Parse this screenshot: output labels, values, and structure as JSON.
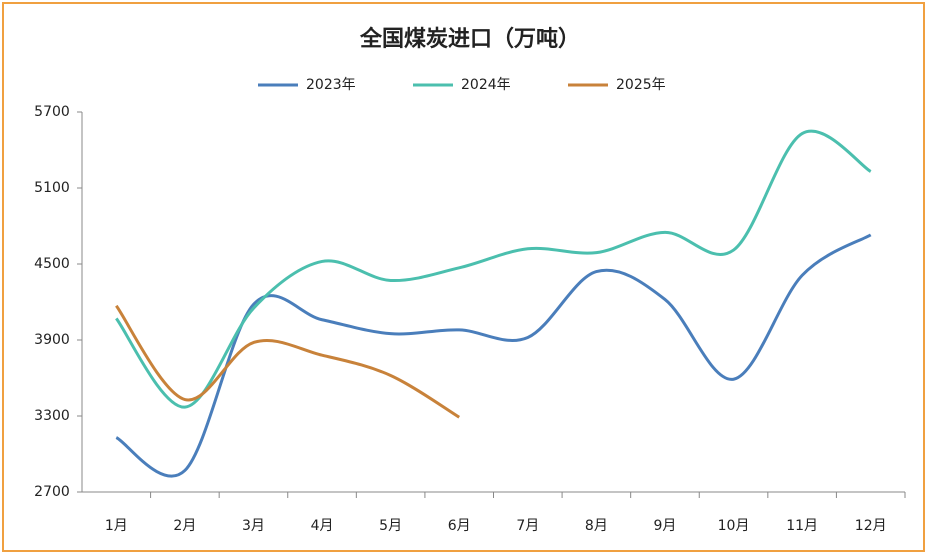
{
  "chart_data": {
    "type": "line",
    "title": "全国煤炭进口（万吨）",
    "categories": [
      "1月",
      "2月",
      "3月",
      "4月",
      "5月",
      "6月",
      "7月",
      "8月",
      "9月",
      "10月",
      "11月",
      "12月"
    ],
    "series": [
      {
        "name": "2023年",
        "color": "#4a7ebb",
        "values": [
          3130,
          2870,
          4180,
          4060,
          3950,
          3980,
          3920,
          4440,
          4220,
          3590,
          4410,
          4730
        ]
      },
      {
        "name": "2024年",
        "color": "#4bbfae",
        "values": [
          4070,
          3370,
          4150,
          4520,
          4370,
          4470,
          4620,
          4590,
          4750,
          4610,
          5530,
          5230
        ]
      },
      {
        "name": "2025年",
        "color": "#c8823a",
        "values": [
          4170,
          3430,
          3880,
          3780,
          3620,
          3290,
          null,
          null,
          null,
          null,
          null,
          null
        ]
      }
    ],
    "ylim": [
      2700,
      5700
    ],
    "yticks": [
      2700,
      3300,
      3900,
      4500,
      5100,
      5700
    ],
    "grid": false,
    "legend": "top"
  }
}
